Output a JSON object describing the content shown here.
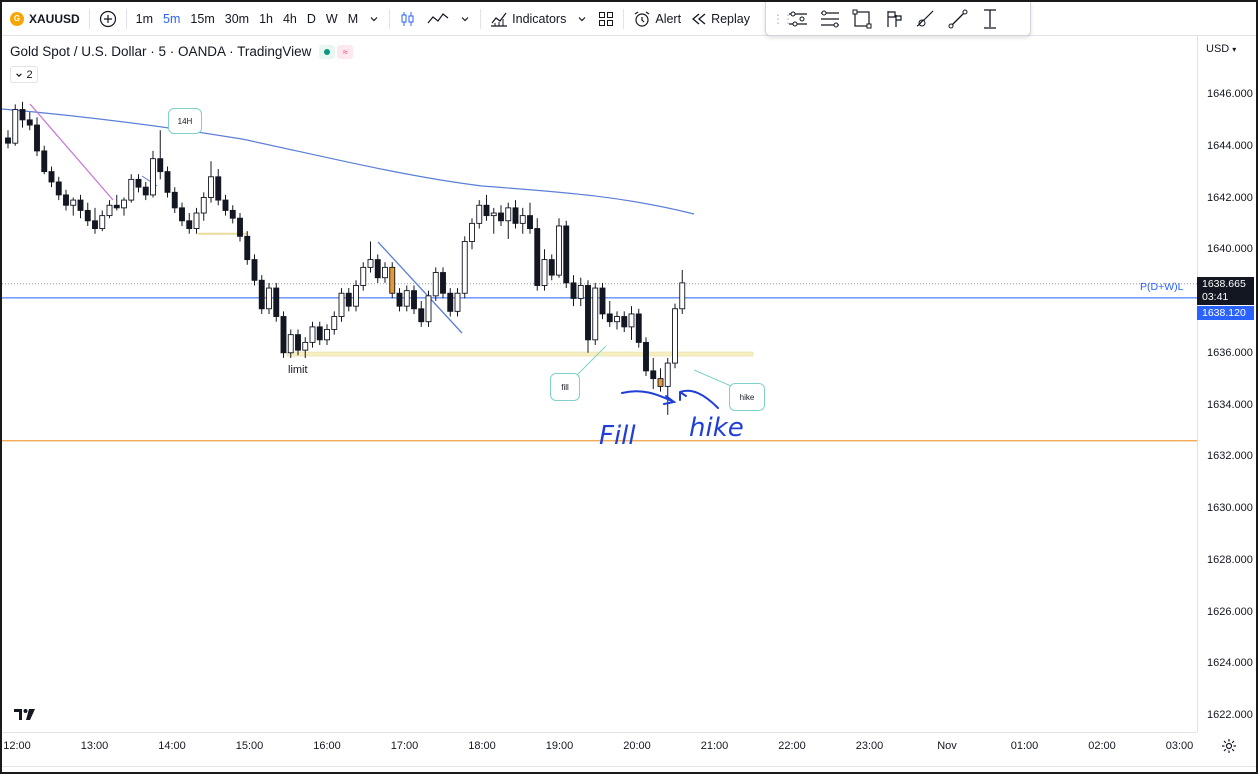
{
  "toolbar": {
    "symbol": "XAUUSD",
    "timeframes": [
      "1m",
      "5m",
      "15m",
      "30m",
      "1h",
      "4h",
      "D",
      "W",
      "M"
    ],
    "active_timeframe": "5m",
    "indicators_label": "Indicators",
    "alert_label": "Alert",
    "replay_label": "Replay"
  },
  "drawing_tools": [
    "trend-angle-icon",
    "fib-retracement-icon",
    "rectangle-icon",
    "flag-icon",
    "brush-icon",
    "trend-line-icon",
    "text-cursor-icon"
  ],
  "legend": {
    "title": "Gold Spot / U.S. Dollar · 5 · OANDA · TradingView",
    "indicator_count": "2"
  },
  "price_axis": {
    "currency": "USD",
    "labels": [
      "1646.000",
      "1644.000",
      "1642.000",
      "1640.000",
      "1638.000",
      "1636.000",
      "1634.000",
      "1632.000",
      "1630.000",
      "1628.000",
      "1626.000",
      "1624.000",
      "1622.000"
    ],
    "current_price": "1638.665",
    "countdown": "03:41",
    "level_price": "1638.120",
    "level_label": "P(D+W)L"
  },
  "time_axis": {
    "labels": [
      "12:00",
      "13:00",
      "14:00",
      "15:00",
      "16:00",
      "17:00",
      "18:00",
      "19:00",
      "20:00",
      "21:00",
      "22:00",
      "23:00",
      "Nov",
      "01:00",
      "02:00",
      "03:00"
    ]
  },
  "annotations": {
    "box_14h": "14H",
    "box_fill": "fill",
    "box_hike": "hike",
    "limit": "limit",
    "hand_fill": "Fill",
    "hand_hike": "hike"
  },
  "colors": {
    "up_candle": "#ffffff",
    "down_candle": "#131722",
    "highlight_candle": "#e39b3a",
    "ma_line": "#5b7fd6",
    "level_blue": "#2962ff",
    "level_orange": "#f0a040",
    "pen_blue": "#1f3fd8",
    "note_border": "#7fd1c9"
  },
  "chart_data": {
    "type": "candlestick",
    "y_range": [
      1621,
      1648
    ],
    "series": [
      {
        "time": "12:00",
        "o": 1644.3,
        "h": 1644.6,
        "l": 1643.9,
        "c": 1644.1
      },
      {
        "time": "12:05",
        "o": 1644.1,
        "h": 1645.6,
        "l": 1644.0,
        "c": 1645.4
      },
      {
        "time": "12:10",
        "o": 1645.4,
        "h": 1645.7,
        "l": 1644.7,
        "c": 1645.0
      },
      {
        "time": "12:15",
        "o": 1645.0,
        "h": 1645.3,
        "l": 1644.6,
        "c": 1644.8
      },
      {
        "time": "12:20",
        "o": 1644.8,
        "h": 1645.1,
        "l": 1643.6,
        "c": 1643.8
      },
      {
        "time": "12:25",
        "o": 1643.8,
        "h": 1644.0,
        "l": 1642.9,
        "c": 1643.0
      },
      {
        "time": "12:30",
        "o": 1643.0,
        "h": 1643.2,
        "l": 1642.4,
        "c": 1642.6
      },
      {
        "time": "12:35",
        "o": 1642.6,
        "h": 1642.8,
        "l": 1641.9,
        "c": 1642.1
      },
      {
        "time": "12:40",
        "o": 1642.1,
        "h": 1642.3,
        "l": 1641.5,
        "c": 1641.7
      },
      {
        "time": "12:45",
        "o": 1641.7,
        "h": 1642.0,
        "l": 1641.3,
        "c": 1641.9
      },
      {
        "time": "12:50",
        "o": 1641.9,
        "h": 1642.1,
        "l": 1641.2,
        "c": 1641.5
      },
      {
        "time": "12:55",
        "o": 1641.5,
        "h": 1641.8,
        "l": 1640.9,
        "c": 1641.1
      },
      {
        "time": "13:00",
        "o": 1641.1,
        "h": 1641.6,
        "l": 1640.6,
        "c": 1640.8
      },
      {
        "time": "13:05",
        "o": 1640.8,
        "h": 1641.5,
        "l": 1640.7,
        "c": 1641.3
      },
      {
        "time": "13:10",
        "o": 1641.3,
        "h": 1641.9,
        "l": 1641.2,
        "c": 1641.7
      },
      {
        "time": "13:15",
        "o": 1641.7,
        "h": 1642.1,
        "l": 1641.5,
        "c": 1641.6
      },
      {
        "time": "13:20",
        "o": 1641.6,
        "h": 1642.0,
        "l": 1641.3,
        "c": 1641.9
      },
      {
        "time": "13:25",
        "o": 1641.9,
        "h": 1642.9,
        "l": 1641.8,
        "c": 1642.7
      },
      {
        "time": "13:30",
        "o": 1642.7,
        "h": 1642.9,
        "l": 1642.2,
        "c": 1642.4
      },
      {
        "time": "13:35",
        "o": 1642.4,
        "h": 1642.6,
        "l": 1641.9,
        "c": 1642.1
      },
      {
        "time": "13:40",
        "o": 1642.1,
        "h": 1643.8,
        "l": 1642.0,
        "c": 1643.5
      },
      {
        "time": "13:45",
        "o": 1643.5,
        "h": 1644.6,
        "l": 1642.7,
        "c": 1643.0
      },
      {
        "time": "13:50",
        "o": 1643.0,
        "h": 1643.2,
        "l": 1642.0,
        "c": 1642.2
      },
      {
        "time": "13:55",
        "o": 1642.2,
        "h": 1642.4,
        "l": 1641.4,
        "c": 1641.6
      },
      {
        "time": "14:00",
        "o": 1641.6,
        "h": 1641.8,
        "l": 1640.9,
        "c": 1641.1
      },
      {
        "time": "14:05",
        "o": 1641.1,
        "h": 1641.4,
        "l": 1640.6,
        "c": 1640.8
      },
      {
        "time": "14:10",
        "o": 1640.8,
        "h": 1641.6,
        "l": 1640.6,
        "c": 1641.4
      },
      {
        "time": "14:15",
        "o": 1641.4,
        "h": 1642.2,
        "l": 1641.1,
        "c": 1642.0
      },
      {
        "time": "14:20",
        "o": 1642.0,
        "h": 1643.4,
        "l": 1641.8,
        "c": 1642.8
      },
      {
        "time": "14:25",
        "o": 1642.8,
        "h": 1643.1,
        "l": 1641.7,
        "c": 1641.9
      },
      {
        "time": "14:30",
        "o": 1641.9,
        "h": 1642.1,
        "l": 1641.3,
        "c": 1641.5
      },
      {
        "time": "14:35",
        "o": 1641.5,
        "h": 1641.7,
        "l": 1641.0,
        "c": 1641.2
      },
      {
        "time": "14:40",
        "o": 1641.2,
        "h": 1641.4,
        "l": 1640.3,
        "c": 1640.5
      },
      {
        "time": "14:45",
        "o": 1640.5,
        "h": 1640.7,
        "l": 1639.4,
        "c": 1639.6
      },
      {
        "time": "14:50",
        "o": 1639.6,
        "h": 1639.8,
        "l": 1638.6,
        "c": 1638.8
      },
      {
        "time": "14:55",
        "o": 1638.8,
        "h": 1639.0,
        "l": 1637.5,
        "c": 1637.7
      },
      {
        "time": "15:00",
        "o": 1637.7,
        "h": 1638.7,
        "l": 1637.5,
        "c": 1638.5
      },
      {
        "time": "15:05",
        "o": 1638.5,
        "h": 1638.7,
        "l": 1637.2,
        "c": 1637.4
      },
      {
        "time": "15:10",
        "o": 1637.4,
        "h": 1637.6,
        "l": 1635.8,
        "c": 1636.0
      },
      {
        "time": "15:15",
        "o": 1636.0,
        "h": 1636.9,
        "l": 1635.8,
        "c": 1636.7
      },
      {
        "time": "15:20",
        "o": 1636.7,
        "h": 1636.9,
        "l": 1635.9,
        "c": 1636.1
      },
      {
        "time": "15:25",
        "o": 1636.1,
        "h": 1636.6,
        "l": 1635.8,
        "c": 1636.4
      },
      {
        "time": "15:30",
        "o": 1636.4,
        "h": 1637.2,
        "l": 1636.2,
        "c": 1637.0
      },
      {
        "time": "15:35",
        "o": 1637.0,
        "h": 1637.2,
        "l": 1636.3,
        "c": 1636.5
      },
      {
        "time": "15:40",
        "o": 1636.5,
        "h": 1637.1,
        "l": 1636.3,
        "c": 1636.9
      },
      {
        "time": "15:45",
        "o": 1636.9,
        "h": 1637.6,
        "l": 1636.7,
        "c": 1637.4
      },
      {
        "time": "15:50",
        "o": 1637.4,
        "h": 1638.5,
        "l": 1637.2,
        "c": 1638.3
      },
      {
        "time": "15:55",
        "o": 1638.3,
        "h": 1638.5,
        "l": 1637.6,
        "c": 1637.8
      },
      {
        "time": "16:00",
        "o": 1637.8,
        "h": 1638.8,
        "l": 1637.6,
        "c": 1638.6
      },
      {
        "time": "16:05",
        "o": 1638.6,
        "h": 1639.5,
        "l": 1638.4,
        "c": 1639.3
      },
      {
        "time": "16:10",
        "o": 1639.3,
        "h": 1640.3,
        "l": 1639.1,
        "c": 1639.6
      },
      {
        "time": "16:15",
        "o": 1639.6,
        "h": 1639.8,
        "l": 1638.7,
        "c": 1638.9
      },
      {
        "time": "16:20",
        "o": 1638.9,
        "h": 1639.5,
        "l": 1638.7,
        "c": 1639.3
      },
      {
        "time": "16:25",
        "o": 1639.3,
        "h": 1639.5,
        "l": 1638.1,
        "c": 1638.3,
        "hl": true
      },
      {
        "time": "16:30",
        "o": 1638.3,
        "h": 1638.5,
        "l": 1637.6,
        "c": 1637.8
      },
      {
        "time": "16:35",
        "o": 1637.8,
        "h": 1638.6,
        "l": 1637.6,
        "c": 1638.4
      },
      {
        "time": "16:40",
        "o": 1638.4,
        "h": 1638.6,
        "l": 1637.5,
        "c": 1637.7
      },
      {
        "time": "16:45",
        "o": 1637.7,
        "h": 1638.0,
        "l": 1637.0,
        "c": 1637.2
      },
      {
        "time": "16:50",
        "o": 1637.2,
        "h": 1638.4,
        "l": 1637.0,
        "c": 1638.2
      },
      {
        "time": "16:55",
        "o": 1638.2,
        "h": 1639.3,
        "l": 1638.0,
        "c": 1639.1
      },
      {
        "time": "17:00",
        "o": 1639.1,
        "h": 1639.3,
        "l": 1638.1,
        "c": 1638.3
      },
      {
        "time": "17:05",
        "o": 1638.3,
        "h": 1638.5,
        "l": 1637.4,
        "c": 1637.6
      },
      {
        "time": "17:10",
        "o": 1637.6,
        "h": 1638.5,
        "l": 1637.4,
        "c": 1638.3
      },
      {
        "time": "17:15",
        "o": 1638.3,
        "h": 1640.5,
        "l": 1638.1,
        "c": 1640.3
      },
      {
        "time": "17:20",
        "o": 1640.3,
        "h": 1641.2,
        "l": 1640.0,
        "c": 1641.0
      },
      {
        "time": "17:25",
        "o": 1641.0,
        "h": 1641.9,
        "l": 1640.8,
        "c": 1641.7
      },
      {
        "time": "17:30",
        "o": 1641.7,
        "h": 1642.1,
        "l": 1641.1,
        "c": 1641.3
      },
      {
        "time": "17:35",
        "o": 1641.3,
        "h": 1641.6,
        "l": 1640.6,
        "c": 1641.4
      },
      {
        "time": "17:40",
        "o": 1641.4,
        "h": 1641.7,
        "l": 1640.9,
        "c": 1641.1
      },
      {
        "time": "17:45",
        "o": 1641.1,
        "h": 1641.8,
        "l": 1640.4,
        "c": 1641.6
      },
      {
        "time": "17:50",
        "o": 1641.6,
        "h": 1641.9,
        "l": 1640.8,
        "c": 1641.0
      },
      {
        "time": "17:55",
        "o": 1641.0,
        "h": 1641.6,
        "l": 1640.6,
        "c": 1641.3
      },
      {
        "time": "18:00",
        "o": 1641.3,
        "h": 1641.8,
        "l": 1640.6,
        "c": 1640.8
      },
      {
        "time": "18:05",
        "o": 1640.8,
        "h": 1641.2,
        "l": 1638.4,
        "c": 1638.6
      },
      {
        "time": "18:10",
        "o": 1638.6,
        "h": 1640.0,
        "l": 1638.4,
        "c": 1639.6
      },
      {
        "time": "18:15",
        "o": 1639.6,
        "h": 1639.8,
        "l": 1638.8,
        "c": 1639.0
      },
      {
        "time": "18:20",
        "o": 1639.0,
        "h": 1641.2,
        "l": 1638.9,
        "c": 1640.9
      },
      {
        "time": "18:25",
        "o": 1640.9,
        "h": 1641.1,
        "l": 1638.5,
        "c": 1638.7
      },
      {
        "time": "18:30",
        "o": 1638.7,
        "h": 1639.0,
        "l": 1637.8,
        "c": 1638.1
      },
      {
        "time": "18:35",
        "o": 1638.1,
        "h": 1638.9,
        "l": 1637.8,
        "c": 1638.6
      },
      {
        "time": "18:40",
        "o": 1638.6,
        "h": 1638.8,
        "l": 1636.0,
        "c": 1636.5
      },
      {
        "time": "18:45",
        "o": 1636.5,
        "h": 1638.7,
        "l": 1636.3,
        "c": 1638.5
      },
      {
        "time": "18:50",
        "o": 1638.5,
        "h": 1638.7,
        "l": 1637.3,
        "c": 1637.5
      },
      {
        "time": "18:55",
        "o": 1637.5,
        "h": 1638.0,
        "l": 1637.0,
        "c": 1637.2
      },
      {
        "time": "19:00",
        "o": 1637.2,
        "h": 1637.6,
        "l": 1636.9,
        "c": 1637.4
      },
      {
        "time": "19:05",
        "o": 1637.4,
        "h": 1637.6,
        "l": 1636.8,
        "c": 1637.0
      },
      {
        "time": "19:10",
        "o": 1637.0,
        "h": 1637.8,
        "l": 1636.5,
        "c": 1637.5
      },
      {
        "time": "19:15",
        "o": 1637.5,
        "h": 1637.7,
        "l": 1636.2,
        "c": 1636.4
      },
      {
        "time": "19:20",
        "o": 1636.4,
        "h": 1636.6,
        "l": 1635.1,
        "c": 1635.3
      },
      {
        "time": "19:25",
        "o": 1635.3,
        "h": 1635.8,
        "l": 1634.6,
        "c": 1635.0
      },
      {
        "time": "19:30",
        "o": 1635.0,
        "h": 1635.4,
        "l": 1634.5,
        "c": 1634.7,
        "hl": true
      },
      {
        "time": "19:35",
        "o": 1634.7,
        "h": 1635.8,
        "l": 1633.6,
        "c": 1635.6
      },
      {
        "time": "19:40",
        "o": 1635.6,
        "h": 1637.9,
        "l": 1635.4,
        "c": 1637.7
      },
      {
        "time": "19:45",
        "o": 1637.7,
        "h": 1639.2,
        "l": 1637.5,
        "c": 1638.7
      }
    ]
  }
}
